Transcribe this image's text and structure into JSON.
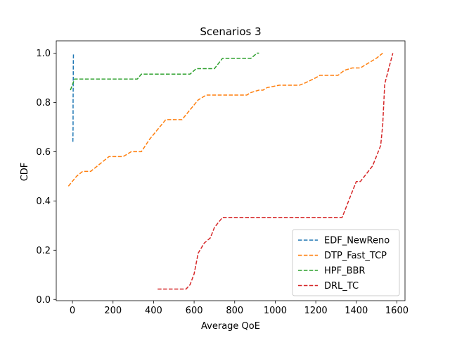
{
  "chart_data": {
    "type": "line",
    "title": "Scenarios 3",
    "xlabel": "Average QoE",
    "ylabel": "CDF",
    "xlim": [
      -80,
      1640
    ],
    "ylim": [
      -0.005,
      1.05
    ],
    "xticks": [
      0,
      200,
      400,
      600,
      800,
      1000,
      1200,
      1400,
      1600
    ],
    "yticks": [
      0.0,
      0.2,
      0.4,
      0.6,
      0.8,
      1.0
    ],
    "xtick_labels": [
      "0",
      "200",
      "400",
      "600",
      "800",
      "1000",
      "1200",
      "1400",
      "1600"
    ],
    "ytick_labels": [
      "0.0",
      "0.2",
      "0.4",
      "0.6",
      "0.8",
      "1.0"
    ],
    "grid": false,
    "legend_position": "bottom-right",
    "series": [
      {
        "name": "EDF_NewReno",
        "color": "#1f77b4",
        "x": [
          2,
          3,
          3,
          4,
          4,
          5
        ],
        "y": [
          0.64,
          0.7,
          0.8,
          0.9,
          0.95,
          1.0
        ]
      },
      {
        "name": "DTP_Fast_TCP",
        "color": "#ff7f0e",
        "x": [
          -20,
          0,
          20,
          50,
          90,
          120,
          150,
          180,
          250,
          290,
          340,
          380,
          420,
          440,
          460,
          540,
          560,
          580,
          600,
          620,
          660,
          800,
          860,
          880,
          920,
          940,
          960,
          1020,
          1120,
          1150,
          1200,
          1220,
          1310,
          1340,
          1380,
          1420,
          1460,
          1500,
          1530
        ],
        "y": [
          0.46,
          0.48,
          0.5,
          0.52,
          0.52,
          0.54,
          0.56,
          0.58,
          0.58,
          0.6,
          0.6,
          0.65,
          0.69,
          0.71,
          0.73,
          0.73,
          0.75,
          0.77,
          0.79,
          0.81,
          0.83,
          0.83,
          0.83,
          0.84,
          0.85,
          0.85,
          0.86,
          0.87,
          0.87,
          0.88,
          0.9,
          0.91,
          0.91,
          0.93,
          0.94,
          0.94,
          0.96,
          0.98,
          1.0
        ]
      },
      {
        "name": "HPF_BBR",
        "color": "#2ca02c",
        "x": [
          -10,
          10,
          320,
          340,
          580,
          610,
          700,
          740,
          880,
          910,
          920
        ],
        "y": [
          0.85,
          0.895,
          0.895,
          0.915,
          0.915,
          0.937,
          0.937,
          0.979,
          0.979,
          1.0,
          1.0
        ]
      },
      {
        "name": "DRL_TC",
        "color": "#d62728",
        "x": [
          420,
          560,
          580,
          600,
          610,
          620,
          650,
          680,
          700,
          720,
          740,
          760,
          1330,
          1340,
          1360,
          1380,
          1400,
          1420,
          1440,
          1460,
          1480,
          1500,
          1520,
          1530,
          1540,
          1560,
          1580
        ],
        "y": [
          0.042,
          0.042,
          0.06,
          0.104,
          0.146,
          0.188,
          0.229,
          0.25,
          0.292,
          0.313,
          0.333,
          0.333,
          0.333,
          0.354,
          0.396,
          0.438,
          0.479,
          0.479,
          0.5,
          0.521,
          0.542,
          0.583,
          0.625,
          0.708,
          0.875,
          0.938,
          1.0
        ]
      }
    ]
  }
}
